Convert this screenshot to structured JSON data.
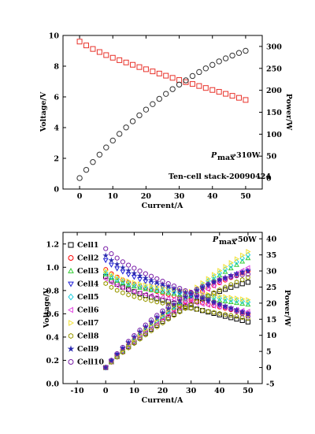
{
  "chart_data": [
    {
      "type": "scatter",
      "xlabel": "Current/A",
      "ylabel": "Voltage/V",
      "y2label": "Power/W",
      "xlim": [
        -5,
        55
      ],
      "ylim": [
        0,
        10
      ],
      "y2lim": [
        -25,
        325
      ],
      "xticks": [
        "0",
        "10",
        "20",
        "30",
        "40",
        "50"
      ],
      "yticks": [
        "0",
        "2",
        "4",
        "6",
        "8",
        "10"
      ],
      "y2ticks": [
        "0",
        "50",
        "100",
        "150",
        "200",
        "250",
        "300"
      ],
      "annotations": [
        "P",
        "max",
        "→310W",
        "Ten-cell stack-20090424"
      ],
      "series": [
        {
          "axis": "left",
          "marker": "square",
          "color": "#e8322a",
          "x": [
            0,
            2,
            4,
            6,
            8,
            10,
            12,
            14,
            16,
            18,
            20,
            22,
            24,
            26,
            28,
            30,
            32,
            34,
            36,
            38,
            40,
            42,
            44,
            46,
            48,
            50
          ],
          "y": [
            9.6,
            9.35,
            9.12,
            8.92,
            8.72,
            8.55,
            8.39,
            8.24,
            8.09,
            7.94,
            7.8,
            7.66,
            7.52,
            7.38,
            7.24,
            7.1,
            6.96,
            6.84,
            6.71,
            6.58,
            6.45,
            6.33,
            6.2,
            6.07,
            5.94,
            5.8
          ]
        },
        {
          "axis": "right",
          "marker": "circle",
          "color": "#333333",
          "x": [
            0,
            2,
            4,
            6,
            8,
            10,
            12,
            14,
            16,
            18,
            20,
            22,
            24,
            26,
            28,
            30,
            32,
            34,
            36,
            38,
            40,
            42,
            44,
            46,
            48,
            50
          ],
          "y": [
            0,
            18.7,
            36.5,
            53.5,
            69.8,
            85.5,
            100.7,
            115.4,
            129.4,
            143,
            156,
            168.5,
            180.5,
            191.9,
            202.7,
            213,
            222.7,
            232.6,
            241.6,
            250,
            258,
            265.9,
            272.8,
            279.2,
            285.1,
            290
          ]
        }
      ]
    },
    {
      "type": "scatter",
      "xlabel": "Current/A",
      "ylabel": "Voltage/V",
      "y2label": "Power/W",
      "xlim": [
        -15,
        55
      ],
      "ylim": [
        0,
        1.3
      ],
      "y2lim": [
        -5,
        42
      ],
      "xticks": [
        "-10",
        "0",
        "10",
        "20",
        "30",
        "40",
        "50"
      ],
      "yticks": [
        "0.0",
        "0.2",
        "0.4",
        "0.6",
        "0.8",
        "1.0",
        "1.2"
      ],
      "y2ticks": [
        "-5",
        "0",
        "5",
        "10",
        "15",
        "20",
        "25",
        "30",
        "35",
        "40"
      ],
      "annotations": [
        "P",
        "max",
        "→50W"
      ],
      "x": [
        0,
        2,
        4,
        6,
        8,
        10,
        12,
        14,
        16,
        18,
        20,
        22,
        24,
        26,
        28,
        30,
        32,
        34,
        36,
        38,
        40,
        42,
        44,
        46,
        48,
        50
      ],
      "series": [
        {
          "name": "Cell1",
          "marker": "square",
          "color": "#000000",
          "v0": 0.92,
          "v50": 0.53
        },
        {
          "name": "Cell2",
          "marker": "circle",
          "color": "#ff0000",
          "v0": 0.98,
          "v50": 0.6
        },
        {
          "name": "Cell3",
          "marker": "triangle-up",
          "color": "#33cc33",
          "v0": 0.94,
          "v50": 0.68
        },
        {
          "name": "Cell4",
          "marker": "triangle-down",
          "color": "#1f1fd6",
          "v0": 1.06,
          "v50": 0.6
        },
        {
          "name": "Cell5",
          "marker": "diamond",
          "color": "#22d0e0",
          "v0": 0.95,
          "v50": 0.7
        },
        {
          "name": "Cell6",
          "marker": "triangle-left",
          "color": "#e040e0",
          "v0": 0.9,
          "v50": 0.62
        },
        {
          "name": "Cell7",
          "marker": "triangle-right",
          "color": "#f2e033",
          "v0": 0.97,
          "v50": 0.72
        },
        {
          "name": "Cell8",
          "marker": "hexagon",
          "color": "#999900",
          "v0": 0.86,
          "v50": 0.56
        },
        {
          "name": "Cell9",
          "marker": "star",
          "color": "#2a2ab0",
          "v0": 1.1,
          "v50": 0.6
        },
        {
          "name": "Cell10",
          "marker": "circle",
          "color": "#7a1fa8",
          "v0": 1.16,
          "v50": 0.58
        }
      ]
    }
  ]
}
